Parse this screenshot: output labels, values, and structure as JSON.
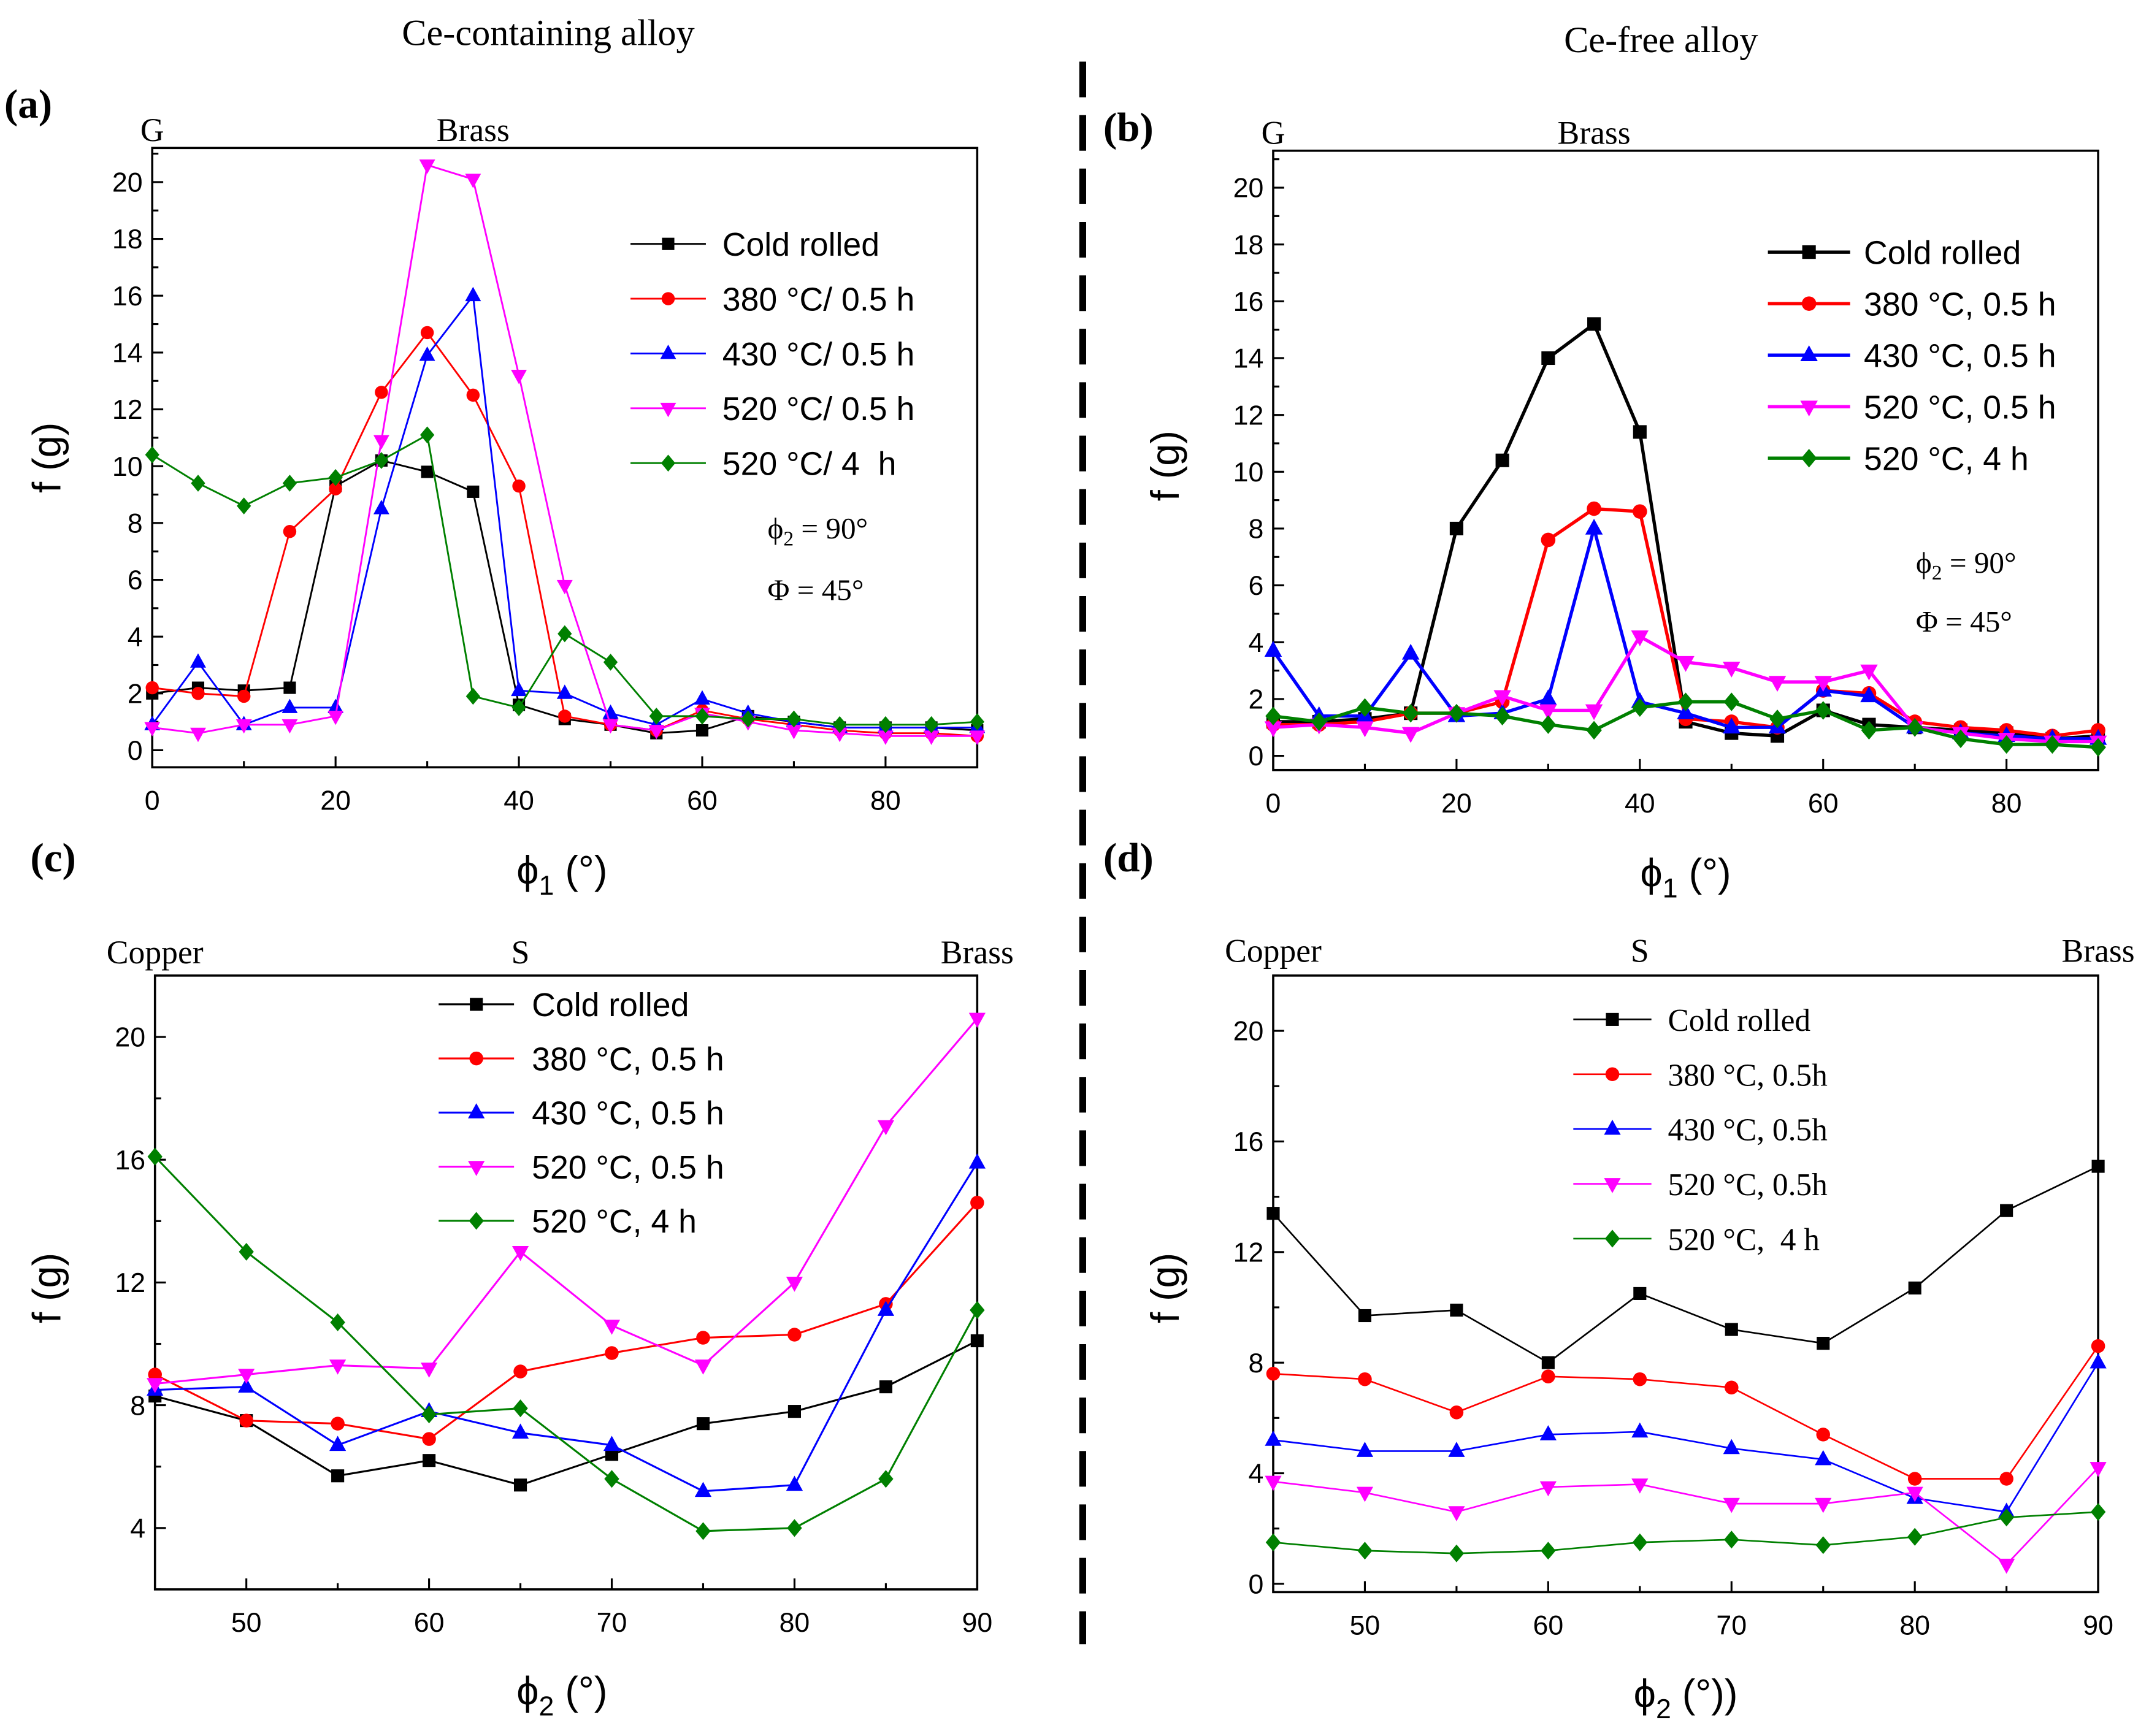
{
  "figure": {
    "left_title": "Ce-containing alloy",
    "right_title": "Ce-free alloy"
  },
  "chart_data": [
    {
      "panel_label": "(a)",
      "type": "line",
      "xlabel": {
        "main": "ϕ",
        "sub": "1",
        "rest": " (°)"
      },
      "ylabel": "f (g)",
      "xlim": [
        0,
        90
      ],
      "ylim": [
        -0.6,
        21.2
      ],
      "xticks": [
        0,
        20,
        40,
        60,
        80
      ],
      "yticks": [
        0,
        2,
        4,
        6,
        8,
        10,
        12,
        14,
        16,
        18,
        20
      ],
      "top_labels": [
        {
          "text": "G",
          "x": 0
        },
        {
          "text": "Brass",
          "x": 35
        }
      ],
      "annotations": [
        {
          "main": "ϕ",
          "sub": "2",
          "rest": " = 90°"
        },
        {
          "main": "Φ = 45°"
        }
      ],
      "legend_position": "upper-right",
      "x": [
        0,
        5,
        10,
        15,
        20,
        25,
        30,
        35,
        40,
        45,
        50,
        55,
        60,
        65,
        70,
        75,
        80,
        85,
        90
      ],
      "series": [
        {
          "name": "Cold rolled",
          "color": "#000000",
          "marker": "square",
          "values": [
            2.0,
            2.2,
            2.1,
            2.2,
            9.3,
            10.2,
            9.8,
            9.1,
            1.6,
            1.1,
            0.9,
            0.6,
            0.7,
            1.2,
            1.0,
            0.8,
            0.8,
            0.8,
            0.7
          ]
        },
        {
          "name": "380 °C/ 0.5 h",
          "color": "#ff0000",
          "marker": "circle",
          "values": [
            2.2,
            2.0,
            1.9,
            7.7,
            9.2,
            12.6,
            14.7,
            12.5,
            9.3,
            1.2,
            0.9,
            0.7,
            1.4,
            1.1,
            0.9,
            0.7,
            0.6,
            0.6,
            0.5
          ]
        },
        {
          "name": "430 °C/ 0.5 h",
          "color": "#0000ff",
          "marker": "triangle-up",
          "values": [
            0.9,
            3.1,
            0.9,
            1.5,
            1.5,
            8.5,
            13.9,
            16.0,
            2.1,
            2.0,
            1.3,
            0.9,
            1.8,
            1.3,
            1.0,
            0.8,
            0.8,
            0.8,
            0.8
          ]
        },
        {
          "name": "520 °C/ 0.5 h",
          "color": "#ff00ff",
          "marker": "triangle-down",
          "values": [
            0.8,
            0.6,
            0.9,
            0.9,
            1.2,
            10.9,
            20.6,
            20.1,
            13.2,
            5.8,
            0.9,
            0.7,
            1.3,
            1.0,
            0.7,
            0.6,
            0.5,
            0.5,
            0.5
          ]
        },
        {
          "name": "520 °C/ 4  h",
          "color": "#008000",
          "marker": "diamond",
          "values": [
            10.4,
            9.4,
            8.6,
            9.4,
            9.6,
            10.2,
            11.1,
            1.9,
            1.5,
            4.1,
            3.1,
            1.2,
            1.2,
            1.1,
            1.1,
            0.9,
            0.9,
            0.9,
            1.0
          ]
        }
      ]
    },
    {
      "panel_label": "(b)",
      "type": "line",
      "xlabel": {
        "main": "ϕ",
        "sub": "1",
        "rest": " (°)"
      },
      "ylabel": "f (g)",
      "xlim": [
        0,
        90
      ],
      "ylim": [
        -0.5,
        21.3
      ],
      "xticks": [
        0,
        20,
        40,
        60,
        80
      ],
      "yticks": [
        0,
        2,
        4,
        6,
        8,
        10,
        12,
        14,
        16,
        18,
        20
      ],
      "top_labels": [
        {
          "text": "G",
          "x": 0
        },
        {
          "text": "Brass",
          "x": 35
        }
      ],
      "annotations": [
        {
          "main": "ϕ",
          "sub": "2",
          "rest": " = 90°"
        },
        {
          "main": "Φ = 45°"
        }
      ],
      "legend_position": "upper-right",
      "x": [
        0,
        5,
        10,
        15,
        20,
        25,
        30,
        35,
        40,
        45,
        50,
        55,
        60,
        65,
        70,
        75,
        80,
        85,
        90
      ],
      "series": [
        {
          "name": "Cold rolled",
          "color": "#000000",
          "marker": "square",
          "values": [
            1.2,
            1.2,
            1.3,
            1.5,
            8.0,
            10.4,
            14.0,
            15.2,
            11.4,
            1.2,
            0.8,
            0.7,
            1.6,
            1.1,
            1.0,
            0.9,
            0.8,
            0.6,
            0.7
          ]
        },
        {
          "name": "380 °C, 0.5 h",
          "color": "#ff0000",
          "marker": "circle",
          "values": [
            1.1,
            1.1,
            1.2,
            1.5,
            1.5,
            1.9,
            7.6,
            8.7,
            8.6,
            1.3,
            1.2,
            1.0,
            2.3,
            2.2,
            1.2,
            1.0,
            0.9,
            0.7,
            0.9
          ]
        },
        {
          "name": "430 °C, 0.5 h",
          "color": "#0000ff",
          "marker": "triangle-up",
          "values": [
            3.7,
            1.4,
            1.4,
            3.6,
            1.4,
            1.5,
            2.0,
            8.0,
            1.9,
            1.5,
            1.0,
            1.0,
            2.3,
            2.1,
            1.0,
            0.8,
            0.7,
            0.6,
            0.6
          ]
        },
        {
          "name": "520 °C, 0.5 h",
          "color": "#ff00ff",
          "marker": "triangle-down",
          "values": [
            1.0,
            1.1,
            1.0,
            0.8,
            1.5,
            2.1,
            1.6,
            1.6,
            4.2,
            3.3,
            3.1,
            2.6,
            2.6,
            3.0,
            1.0,
            0.8,
            0.6,
            0.5,
            0.5
          ]
        },
        {
          "name": "520 °C, 4 h",
          "color": "#008000",
          "marker": "diamond",
          "values": [
            1.4,
            1.2,
            1.7,
            1.5,
            1.5,
            1.4,
            1.1,
            0.9,
            1.7,
            1.9,
            1.9,
            1.3,
            1.6,
            0.9,
            1.0,
            0.6,
            0.4,
            0.4,
            0.3
          ]
        }
      ]
    },
    {
      "panel_label": "(c)",
      "type": "line",
      "xlabel": {
        "main": "ϕ",
        "sub": "2",
        "rest": " (°)"
      },
      "ylabel": "f (g)",
      "xlim": [
        45,
        90
      ],
      "ylim": [
        2,
        22
      ],
      "xticks": [
        50,
        60,
        70,
        80,
        90
      ],
      "yticks": [
        4,
        8,
        12,
        16,
        20
      ],
      "top_labels": [
        {
          "text": "Copper",
          "x": 45
        },
        {
          "text": "S",
          "x": 65
        },
        {
          "text": "Brass",
          "x": 90
        }
      ],
      "annotations": [],
      "legend_position": "upper-center",
      "x": [
        45,
        50,
        55,
        60,
        65,
        70,
        75,
        80,
        85,
        90
      ],
      "series": [
        {
          "name": "Cold rolled",
          "color": "#000000",
          "marker": "square",
          "values": [
            8.3,
            7.5,
            5.7,
            6.2,
            5.4,
            6.4,
            7.4,
            7.8,
            8.6,
            10.1
          ]
        },
        {
          "name": "380 °C, 0.5 h",
          "color": "#ff0000",
          "marker": "circle",
          "values": [
            9.0,
            7.5,
            7.4,
            6.9,
            9.1,
            9.7,
            10.2,
            10.3,
            11.3,
            14.6
          ]
        },
        {
          "name": "430 °C, 0.5 h",
          "color": "#0000ff",
          "marker": "triangle-up",
          "values": [
            8.5,
            8.6,
            6.7,
            7.8,
            7.1,
            6.7,
            5.2,
            5.4,
            11.1,
            15.9
          ]
        },
        {
          "name": "520 °C, 0.5 h",
          "color": "#ff00ff",
          "marker": "triangle-down",
          "values": [
            8.7,
            9.0,
            9.3,
            9.2,
            13.0,
            10.6,
            9.3,
            12.0,
            17.1,
            20.6
          ]
        },
        {
          "name": "520 °C, 4 h",
          "color": "#008000",
          "marker": "diamond",
          "values": [
            16.1,
            13.0,
            10.7,
            7.7,
            7.9,
            5.6,
            3.9,
            4.0,
            5.6,
            11.1
          ]
        }
      ]
    },
    {
      "panel_label": "(d)",
      "type": "line",
      "xlabel": {
        "main": "ϕ",
        "sub": "2",
        "rest": " (°))"
      },
      "ylabel": "f (g)",
      "xlim": [
        45,
        90
      ],
      "ylim": [
        -0.3,
        22
      ],
      "xticks": [
        50,
        60,
        70,
        80,
        90
      ],
      "yticks": [
        0,
        4,
        8,
        12,
        16,
        20
      ],
      "top_labels": [
        {
          "text": "Copper",
          "x": 45
        },
        {
          "text": "S",
          "x": 65
        },
        {
          "text": "Brass",
          "x": 90
        }
      ],
      "annotations": [],
      "legend_position": "upper-center",
      "x": [
        45,
        50,
        55,
        60,
        65,
        70,
        75,
        80,
        85,
        90
      ],
      "series": [
        {
          "name": "Cold rolled",
          "color": "#000000",
          "marker": "square",
          "values": [
            13.4,
            9.7,
            9.9,
            8.0,
            10.5,
            9.2,
            8.7,
            10.7,
            13.5,
            15.1
          ]
        },
        {
          "name": "380 °C, 0.5h",
          "color": "#ff0000",
          "marker": "circle",
          "values": [
            7.6,
            7.4,
            6.2,
            7.5,
            7.4,
            7.1,
            5.4,
            3.8,
            3.8,
            8.6
          ]
        },
        {
          "name": "430 °C, 0.5h",
          "color": "#0000ff",
          "marker": "triangle-up",
          "values": [
            5.2,
            4.8,
            4.8,
            5.4,
            5.5,
            4.9,
            4.5,
            3.1,
            2.6,
            8.0
          ]
        },
        {
          "name": "520 °C, 0.5h",
          "color": "#ff00ff",
          "marker": "triangle-down",
          "values": [
            3.7,
            3.3,
            2.6,
            3.5,
            3.6,
            2.9,
            2.9,
            3.3,
            0.7,
            4.2
          ]
        },
        {
          "name": "520 °C,  4 h",
          "color": "#008000",
          "marker": "diamond",
          "values": [
            1.5,
            1.2,
            1.1,
            1.2,
            1.5,
            1.6,
            1.4,
            1.7,
            2.4,
            2.6
          ]
        }
      ]
    }
  ]
}
